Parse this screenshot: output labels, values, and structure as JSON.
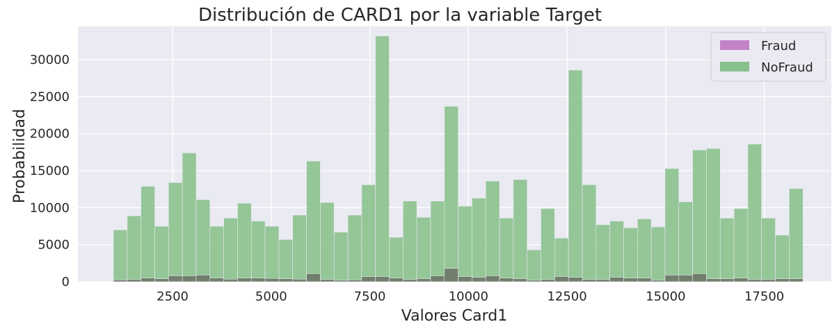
{
  "chart_data": {
    "type": "bar",
    "title": "Distribución de CARD1 por la variable Target",
    "xlabel": "Valores Card1",
    "ylabel": "Probabilidad",
    "xlim": [
      100,
      19200
    ],
    "ylim": [
      0,
      34500
    ],
    "xticks": [
      2500,
      5000,
      7500,
      10000,
      12500,
      15000,
      17500
    ],
    "yticks": [
      0,
      5000,
      10000,
      15000,
      20000,
      25000,
      30000
    ],
    "grid": true,
    "legend_position": "top-right",
    "bin_start": 1000,
    "bin_width": 349.6,
    "series": [
      {
        "name": "Fraud",
        "color": "#c183c6",
        "values": [
          250,
          300,
          500,
          400,
          800,
          800,
          900,
          500,
          350,
          500,
          500,
          450,
          400,
          350,
          1100,
          300,
          200,
          250,
          700,
          700,
          500,
          300,
          400,
          800,
          1800,
          700,
          600,
          800,
          500,
          400,
          200,
          300,
          700,
          600,
          300,
          300,
          600,
          500,
          500,
          200,
          900,
          900,
          1100,
          400,
          400,
          500,
          300,
          300,
          400,
          400
        ]
      },
      {
        "name": "NoFraud",
        "color": "#87c08a",
        "values": [
          7000,
          8900,
          12900,
          7500,
          13400,
          17400,
          11100,
          7500,
          8600,
          10600,
          8200,
          7500,
          5700,
          9000,
          16300,
          10700,
          6700,
          9000,
          13100,
          33200,
          6000,
          10900,
          8700,
          10900,
          23700,
          10200,
          11300,
          13600,
          8600,
          13800,
          4300,
          9900,
          5900,
          28600,
          13100,
          7700,
          8200,
          7300,
          8500,
          7400,
          15300,
          10800,
          17800,
          18000,
          8600,
          9900,
          18600,
          8600,
          6300,
          12600
        ]
      }
    ]
  }
}
